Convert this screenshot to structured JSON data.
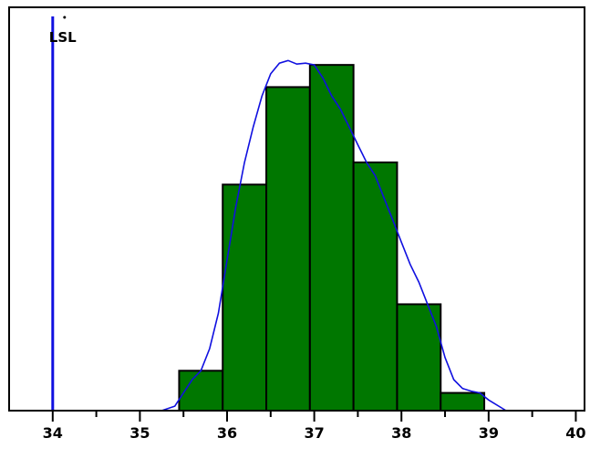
{
  "chart_data": {
    "type": "bar",
    "title": "",
    "xlabel": "",
    "ylabel": "",
    "xlim": [
      33.5,
      40.1
    ],
    "ylim": [
      0,
      0.455
    ],
    "x_ticks": [
      34,
      35,
      36,
      37,
      38,
      39,
      40
    ],
    "x_tick_labels": [
      "34",
      "35",
      "36",
      "37",
      "38",
      "39",
      "40"
    ],
    "x_minor_ticks": [
      34.5,
      35.5,
      36.5,
      37.5,
      38.5,
      39.5
    ],
    "grid": false,
    "legend": "none",
    "bins": [
      {
        "x0": 35.45,
        "x1": 35.95,
        "value": 0.045
      },
      {
        "x0": 35.95,
        "x1": 36.45,
        "value": 0.255
      },
      {
        "x0": 36.45,
        "x1": 36.95,
        "value": 0.365
      },
      {
        "x0": 36.95,
        "x1": 37.45,
        "value": 0.39
      },
      {
        "x0": 37.45,
        "x1": 37.95,
        "value": 0.28
      },
      {
        "x0": 37.95,
        "x1": 38.45,
        "value": 0.12
      },
      {
        "x0": 38.45,
        "x1": 38.95,
        "value": 0.02
      }
    ],
    "density_curve": {
      "x": [
        35.25,
        35.4,
        35.5,
        35.6,
        35.7,
        35.8,
        35.9,
        36.0,
        36.1,
        36.2,
        36.3,
        36.4,
        36.5,
        36.6,
        36.7,
        36.8,
        36.9,
        37.0,
        37.1,
        37.2,
        37.3,
        37.4,
        37.5,
        37.6,
        37.7,
        37.8,
        37.9,
        38.0,
        38.1,
        38.2,
        38.3,
        38.4,
        38.5,
        38.6,
        38.7,
        38.8,
        38.9,
        39.0,
        39.2
      ],
      "y": [
        0.0,
        0.005,
        0.02,
        0.035,
        0.045,
        0.07,
        0.11,
        0.17,
        0.23,
        0.28,
        0.32,
        0.355,
        0.38,
        0.392,
        0.395,
        0.391,
        0.392,
        0.39,
        0.375,
        0.355,
        0.34,
        0.32,
        0.3,
        0.28,
        0.265,
        0.24,
        0.215,
        0.19,
        0.165,
        0.145,
        0.12,
        0.095,
        0.06,
        0.035,
        0.025,
        0.022,
        0.02,
        0.012,
        0.0
      ]
    },
    "reference_lines": [
      {
        "label": "LSL",
        "x": 34
      }
    ],
    "colors": {
      "bar_fill": "#007700",
      "bar_edge": "#000000",
      "curve": "#1010e0",
      "reference_line": "#1010e0",
      "frame": "#000000"
    }
  }
}
